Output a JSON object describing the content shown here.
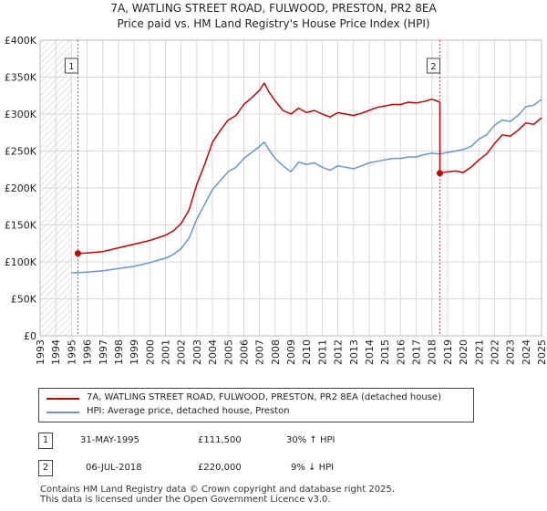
{
  "title_line1": "7A, WATLING STREET ROAD, FULWOOD, PRESTON, PR2 8EA",
  "title_line2": "Price paid vs. HM Land Registry's House Price Index (HPI)",
  "chart_data": {
    "type": "line",
    "xlim": [
      1993,
      2025
    ],
    "ylim": [
      0,
      400000
    ],
    "y_ticks": [
      0,
      50000,
      100000,
      150000,
      200000,
      250000,
      300000,
      350000,
      400000
    ],
    "y_tick_labels": [
      "£0",
      "£50K",
      "£100K",
      "£150K",
      "£200K",
      "£250K",
      "£300K",
      "£350K",
      "£400K"
    ],
    "x_ticks": [
      1993,
      1994,
      1995,
      1996,
      1997,
      1998,
      1999,
      2000,
      2001,
      2002,
      2003,
      2004,
      2005,
      2006,
      2007,
      2008,
      2009,
      2010,
      2011,
      2012,
      2013,
      2014,
      2015,
      2016,
      2017,
      2018,
      2019,
      2020,
      2021,
      2022,
      2023,
      2024,
      2025
    ],
    "x_tick_labels": [
      "1993",
      "1994",
      "1995",
      "1996",
      "1997",
      "1998",
      "1999",
      "2000",
      "2001",
      "2002",
      "2003",
      "2004",
      "2005",
      "2006",
      "2007",
      "2008",
      "2009",
      "2010",
      "2011",
      "2012",
      "2013",
      "2014",
      "2015",
      "2016",
      "2017",
      "2018",
      "2019",
      "2020",
      "2021",
      "2022",
      "2023",
      "2024",
      "2025"
    ],
    "grid": true,
    "hatched_before": 1995.0,
    "series": [
      {
        "name": "7A, WATLING STREET ROAD, FULWOOD, PRESTON, PR2 8EA (detached house)",
        "color": "#cc0000",
        "x": [
          1995.41,
          1996,
          1997,
          1998,
          1999,
          2000,
          2001,
          2001.5,
          2002,
          2002.5,
          2003,
          2003.5,
          2004,
          2004.5,
          2005,
          2005.5,
          2006,
          2006.5,
          2007,
          2007.3,
          2007.6,
          2008,
          2008.5,
          2009,
          2009.5,
          2010,
          2010.5,
          2011,
          2011.5,
          2012,
          2012.5,
          2013,
          2013.5,
          2014,
          2014.5,
          2015,
          2015.5,
          2016,
          2016.5,
          2017,
          2017.5,
          2018,
          2018.3,
          2018.51,
          2018.51,
          2019,
          2019.5,
          2020,
          2020.5,
          2021,
          2021.5,
          2022,
          2022.5,
          2023,
          2023.5,
          2024,
          2024.5,
          2025
        ],
        "y": [
          111500,
          112000,
          114000,
          119000,
          124000,
          129000,
          136000,
          142000,
          152000,
          170000,
          205000,
          232000,
          262000,
          278000,
          292000,
          298000,
          313000,
          322000,
          332000,
          342000,
          330000,
          318000,
          305000,
          300000,
          308000,
          302000,
          305000,
          300000,
          296000,
          302000,
          300000,
          298000,
          301000,
          305000,
          309000,
          311000,
          313000,
          313000,
          316000,
          315000,
          317000,
          320000,
          318000,
          316000,
          220000,
          222000,
          223000,
          221000,
          228000,
          238000,
          246000,
          260000,
          272000,
          270000,
          278000,
          288000,
          286000,
          295000
        ]
      },
      {
        "name": "HPI: Average price, detached house, Preston",
        "color": "#6b96cc",
        "x": [
          1995,
          1996,
          1997,
          1998,
          1999,
          2000,
          2001,
          2001.5,
          2002,
          2002.5,
          2003,
          2003.5,
          2004,
          2004.5,
          2005,
          2005.5,
          2006,
          2006.5,
          2007,
          2007.3,
          2007.6,
          2008,
          2008.5,
          2009,
          2009.5,
          2010,
          2010.5,
          2011,
          2011.5,
          2012,
          2012.5,
          2013,
          2013.5,
          2014,
          2014.5,
          2015,
          2015.5,
          2016,
          2016.5,
          2017,
          2017.5,
          2018,
          2018.51,
          2019,
          2019.5,
          2020,
          2020.5,
          2021,
          2021.5,
          2022,
          2022.5,
          2023,
          2023.5,
          2024,
          2024.5,
          2025
        ],
        "y": [
          85000,
          86000,
          88000,
          91000,
          94000,
          99000,
          105000,
          110000,
          118000,
          132000,
          158000,
          178000,
          198000,
          210000,
          222000,
          228000,
          240000,
          248000,
          256000,
          262000,
          252000,
          240000,
          230000,
          222000,
          235000,
          232000,
          234000,
          228000,
          224000,
          230000,
          228000,
          226000,
          230000,
          234000,
          236000,
          238000,
          240000,
          240000,
          242000,
          242000,
          245000,
          247000,
          246000,
          248000,
          250000,
          252000,
          256000,
          266000,
          272000,
          285000,
          292000,
          290000,
          298000,
          310000,
          312000,
          320000
        ]
      }
    ],
    "markers": [
      {
        "label": "1",
        "x": 1995.41,
        "y": 111500
      },
      {
        "label": "2",
        "x": 2018.51,
        "y": 220000
      }
    ]
  },
  "legend": {
    "items": [
      {
        "label": "7A, WATLING STREET ROAD, FULWOOD, PRESTON, PR2 8EA (detached house)",
        "color": "#cc0000"
      },
      {
        "label": "HPI: Average price, detached house, Preston",
        "color": "#6b96cc"
      }
    ]
  },
  "transactions": [
    {
      "num": "1",
      "date": "31-MAY-1995",
      "price": "£111,500",
      "hpi": "30% ↑ HPI"
    },
    {
      "num": "2",
      "date": "06-JUL-2018",
      "price": "£220,000",
      "hpi": "9% ↓ HPI"
    }
  ],
  "footer": {
    "line1": "Contains HM Land Registry data © Crown copyright and database right 2025.",
    "line2": "This data is licensed under the Open Government Licence v3.0."
  }
}
